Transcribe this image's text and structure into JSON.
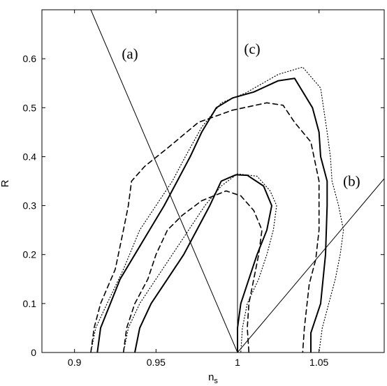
{
  "chart_data": {
    "type": "line",
    "title": "",
    "xlabel": "n",
    "xlabel_sub": "s",
    "ylabel": "R",
    "xlim": [
      0.88,
      1.09
    ],
    "ylim": [
      0,
      0.7
    ],
    "xticks": [
      0.9,
      0.95,
      1,
      1.05
    ],
    "xtick_labels": [
      "0.9",
      "0.95",
      "1",
      "1.05"
    ],
    "yticks": [
      0,
      0.1,
      0.2,
      0.3,
      0.4,
      0.5,
      0.6
    ],
    "ytick_labels": [
      "0",
      "0.1",
      "0.2",
      "0.3",
      "0.4",
      "0.5",
      "0.6"
    ],
    "grid": false,
    "annotations": [
      {
        "text": "(a)",
        "x": 0.934,
        "y": 0.6
      },
      {
        "text": "(c)",
        "x": 1.009,
        "y": 0.61
      },
      {
        "text": "(b)",
        "x": 1.07,
        "y": 0.34
      }
    ],
    "series": [
      {
        "style": "solid",
        "values": [
          [
            0.914,
            0
          ],
          [
            0.916,
            0.05
          ],
          [
            0.922,
            0.1
          ],
          [
            0.928,
            0.15
          ],
          [
            0.937,
            0.2
          ],
          [
            0.946,
            0.25
          ],
          [
            0.955,
            0.3
          ],
          [
            0.963,
            0.35
          ],
          [
            0.971,
            0.4
          ],
          [
            0.978,
            0.45
          ],
          [
            0.987,
            0.5
          ],
          [
            0.997,
            0.52
          ],
          [
            1.01,
            0.532
          ],
          [
            1.025,
            0.555
          ],
          [
            1.035,
            0.56
          ],
          [
            1.046,
            0.5
          ],
          [
            1.05,
            0.45
          ],
          [
            1.051,
            0.4
          ],
          [
            1.055,
            0.35
          ],
          [
            1.055,
            0.3
          ],
          [
            1.054,
            0.2
          ],
          [
            1.051,
            0.1
          ],
          [
            1.045,
            0.04
          ],
          [
            1.045,
            0
          ]
        ]
      },
      {
        "style": "dashed",
        "values": [
          [
            0.91,
            0
          ],
          [
            0.912,
            0.05
          ],
          [
            0.916,
            0.1
          ],
          [
            0.925,
            0.17
          ],
          [
            0.93,
            0.25
          ],
          [
            0.933,
            0.3
          ],
          [
            0.935,
            0.35
          ],
          [
            0.943,
            0.38
          ],
          [
            0.958,
            0.42
          ],
          [
            0.976,
            0.47
          ],
          [
            0.997,
            0.495
          ],
          [
            1.018,
            0.51
          ],
          [
            1.028,
            0.505
          ],
          [
            1.035,
            0.47
          ],
          [
            1.045,
            0.43
          ],
          [
            1.05,
            0.35
          ],
          [
            1.05,
            0.25
          ],
          [
            1.048,
            0.19
          ],
          [
            1.044,
            0.14
          ],
          [
            1.041,
            0.05
          ],
          [
            1.04,
            0
          ]
        ]
      },
      {
        "style": "dotted",
        "values": [
          [
            0.91,
            0
          ],
          [
            0.913,
            0.05
          ],
          [
            0.92,
            0.1
          ],
          [
            0.93,
            0.17
          ],
          [
            0.94,
            0.25
          ],
          [
            0.95,
            0.3
          ],
          [
            0.96,
            0.35
          ],
          [
            0.968,
            0.4
          ],
          [
            0.978,
            0.46
          ],
          [
            0.99,
            0.51
          ],
          [
            1.005,
            0.53
          ],
          [
            1.025,
            0.568
          ],
          [
            1.04,
            0.583
          ],
          [
            1.051,
            0.54
          ],
          [
            1.055,
            0.45
          ],
          [
            1.057,
            0.4
          ],
          [
            1.058,
            0.35
          ],
          [
            1.062,
            0.3
          ],
          [
            1.065,
            0.25
          ],
          [
            1.063,
            0.2
          ],
          [
            1.06,
            0.15
          ],
          [
            1.052,
            0.05
          ],
          [
            1.05,
            0
          ]
        ]
      },
      {
        "style": "solid",
        "values": [
          [
            0.937,
            0
          ],
          [
            0.94,
            0.05
          ],
          [
            0.947,
            0.1
          ],
          [
            0.957,
            0.15
          ],
          [
            0.967,
            0.2
          ],
          [
            0.975,
            0.25
          ],
          [
            0.983,
            0.3
          ],
          [
            0.99,
            0.35
          ],
          [
            0.999,
            0.363
          ],
          [
            1.006,
            0.362
          ],
          [
            1.016,
            0.34
          ],
          [
            1.021,
            0.3
          ],
          [
            1.018,
            0.25
          ],
          [
            1.012,
            0.2
          ],
          [
            1.007,
            0.15
          ],
          [
            1.002,
            0.1
          ],
          [
            1.0,
            0.05
          ],
          [
            1.0,
            0
          ]
        ]
      },
      {
        "style": "dashed",
        "values": [
          [
            0.93,
            0
          ],
          [
            0.932,
            0.05
          ],
          [
            0.937,
            0.1
          ],
          [
            0.945,
            0.15
          ],
          [
            0.95,
            0.2
          ],
          [
            0.957,
            0.25
          ],
          [
            0.966,
            0.28
          ],
          [
            0.978,
            0.31
          ],
          [
            0.993,
            0.33
          ],
          [
            1.002,
            0.32
          ],
          [
            1.01,
            0.29
          ],
          [
            1.015,
            0.25
          ],
          [
            1.013,
            0.2
          ],
          [
            1.01,
            0.15
          ],
          [
            1.007,
            0.1
          ],
          [
            1.006,
            0.05
          ],
          [
            1.007,
            0
          ]
        ]
      },
      {
        "style": "dotted",
        "values": [
          [
            0.93,
            0
          ],
          [
            0.933,
            0.05
          ],
          [
            0.94,
            0.1
          ],
          [
            0.95,
            0.15
          ],
          [
            0.96,
            0.2
          ],
          [
            0.97,
            0.25
          ],
          [
            0.98,
            0.3
          ],
          [
            0.99,
            0.34
          ],
          [
            1.0,
            0.365
          ],
          [
            1.012,
            0.36
          ],
          [
            1.02,
            0.33
          ],
          [
            1.024,
            0.3
          ],
          [
            1.022,
            0.25
          ],
          [
            1.018,
            0.2
          ],
          [
            1.013,
            0.15
          ],
          [
            1.006,
            0.1
          ],
          [
            1.003,
            0.05
          ],
          [
            1.002,
            0
          ]
        ]
      },
      {
        "style": "thin",
        "values": [
          [
            0.91,
            0.7
          ],
          [
            1.0,
            0
          ]
        ]
      },
      {
        "style": "thin",
        "values": [
          [
            1.0,
            0
          ],
          [
            1.0,
            0.7
          ]
        ]
      },
      {
        "style": "thin",
        "values": [
          [
            1.0,
            0
          ],
          [
            1.09,
            0.355
          ]
        ]
      }
    ]
  }
}
